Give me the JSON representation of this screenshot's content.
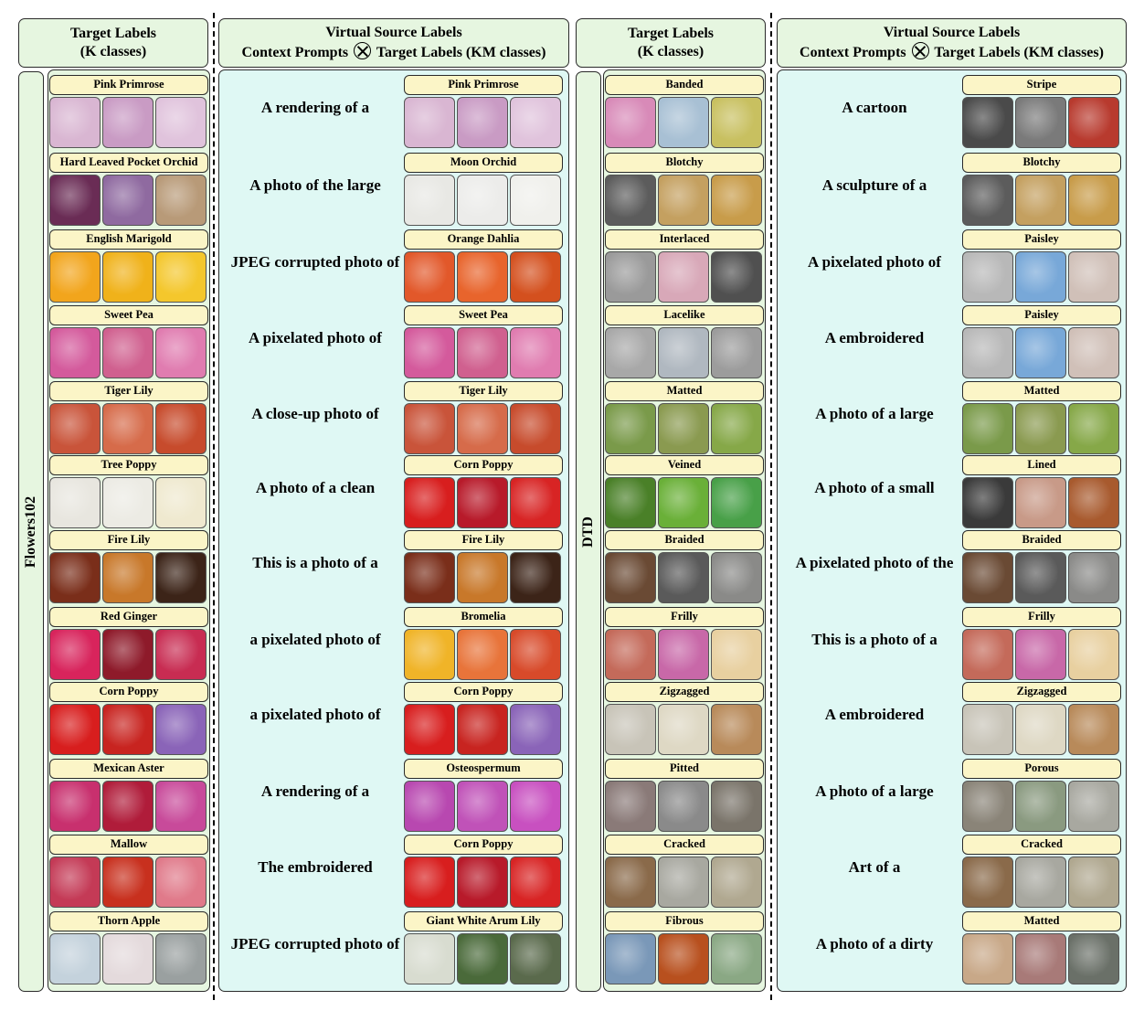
{
  "headers": {
    "target1": {
      "line1": "Target Labels",
      "line2": "(K classes)"
    },
    "virtual1": {
      "line1": "Virtual Source Labels",
      "part_a": "Context Prompts",
      "part_b": "Target Labels (KM classes)"
    },
    "target2": {
      "line1": "Target Labels",
      "line2": "(K classes)"
    },
    "virtual2": {
      "line1": "Virtual Source Labels",
      "part_a": "Context Prompts",
      "part_b": "Target Labels (KM classes)"
    }
  },
  "datasets": {
    "left": "Flowers102",
    "right": "DTD"
  },
  "flowers_targets": [
    {
      "label": "Pink Primrose",
      "colors": [
        "#d9b6d2",
        "#c99bc4",
        "#e0c3dc"
      ]
    },
    {
      "label": "Hard Leaved Pocket Orchid",
      "colors": [
        "#6a2c55",
        "#8f6aa0",
        "#b89a78"
      ]
    },
    {
      "label": "English Marigold",
      "colors": [
        "#f2a51c",
        "#f0b21a",
        "#f4c72c"
      ]
    },
    {
      "label": "Sweet Pea",
      "colors": [
        "#d45a9c",
        "#d0608f",
        "#e07cb0"
      ]
    },
    {
      "label": "Tiger Lily",
      "colors": [
        "#c9543a",
        "#d66b4a",
        "#c74b2c"
      ]
    },
    {
      "label": "Tree Poppy",
      "colors": [
        "#e8e6df",
        "#ecebe4",
        "#efe9cf"
      ]
    },
    {
      "label": "Fire Lily",
      "colors": [
        "#7a2e1a",
        "#c8782a",
        "#3c2418"
      ]
    },
    {
      "label": "Red Ginger",
      "colors": [
        "#d8245c",
        "#8e1a2a",
        "#c82c52"
      ]
    },
    {
      "label": "Corn Poppy",
      "colors": [
        "#d81e1e",
        "#c82420",
        "#8a64b8"
      ]
    },
    {
      "label": "Mexican Aster",
      "colors": [
        "#c8306e",
        "#b01c3a",
        "#c84a9a"
      ]
    },
    {
      "label": "Mallow",
      "colors": [
        "#c43a56",
        "#c8301e",
        "#e07a8a"
      ]
    },
    {
      "label": "Thorn Apple",
      "colors": [
        "#c4d2dc",
        "#e4dadc",
        "#9aa0a0"
      ]
    }
  ],
  "flowers_virtual": [
    {
      "prompt": "A rendering of a",
      "label": "Pink Primrose",
      "colors": [
        "#d9b6d2",
        "#c99bc4",
        "#e0c3dc"
      ]
    },
    {
      "prompt": "A photo of the large",
      "label": "Moon Orchid",
      "colors": [
        "#e8e8e4",
        "#ececea",
        "#f0f0ec"
      ]
    },
    {
      "prompt": "JPEG corrupted photo of",
      "label": "Orange Dahlia",
      "colors": [
        "#e2582a",
        "#e8642c",
        "#d4501e"
      ]
    },
    {
      "prompt": "A pixelated photo of",
      "label": "Sweet Pea",
      "colors": [
        "#d45a9c",
        "#d0608f",
        "#e07cb0"
      ]
    },
    {
      "prompt": "A close-up photo of",
      "label": "Tiger Lily",
      "colors": [
        "#c9543a",
        "#d66b4a",
        "#c74b2c"
      ]
    },
    {
      "prompt": "A photo of a clean",
      "label": "Corn Poppy",
      "colors": [
        "#d81e1e",
        "#b81a2a",
        "#d82424"
      ]
    },
    {
      "prompt": "This is a photo of a",
      "label": "Fire Lily",
      "colors": [
        "#7a2e1a",
        "#c8782a",
        "#3c2418"
      ]
    },
    {
      "prompt": "a pixelated photo of",
      "label": "Bromelia",
      "colors": [
        "#f0b428",
        "#e8743a",
        "#d84a2a"
      ]
    },
    {
      "prompt": "a pixelated photo of",
      "label": "Corn Poppy",
      "colors": [
        "#d81e1e",
        "#c82420",
        "#8a64b8"
      ]
    },
    {
      "prompt": "A rendering of a",
      "label": "Osteospermum",
      "colors": [
        "#b848b0",
        "#c052b8",
        "#c850c0"
      ]
    },
    {
      "prompt": "The embroidered",
      "label": "Corn Poppy",
      "colors": [
        "#d81e1e",
        "#b81a2a",
        "#d82424"
      ]
    },
    {
      "prompt": "JPEG corrupted photo of",
      "label": "Giant White Arum Lily",
      "colors": [
        "#d8dcd0",
        "#4a6a3a",
        "#5a6a4c"
      ]
    }
  ],
  "dtd_targets": [
    {
      "label": "Banded",
      "colors": [
        "#d88ab8",
        "#a8c0d4",
        "#c8c060"
      ]
    },
    {
      "label": "Blotchy",
      "colors": [
        "#5c5c5c",
        "#c4a060",
        "#c89c4a"
      ]
    },
    {
      "label": "Interlaced",
      "colors": [
        "#9a9a9a",
        "#d8a8b8",
        "#505050"
      ]
    },
    {
      "label": "Lacelike",
      "colors": [
        "#a8a8a8",
        "#b0b8c0",
        "#9c9c9c"
      ]
    },
    {
      "label": "Matted",
      "colors": [
        "#7a9a4a",
        "#8a9a50",
        "#86a848"
      ]
    },
    {
      "label": "Veined",
      "colors": [
        "#4a8028",
        "#6ab038",
        "#48a048"
      ]
    },
    {
      "label": "Braided",
      "colors": [
        "#6a4a34",
        "#5a5a5a",
        "#8a8a88"
      ]
    },
    {
      "label": "Frilly",
      "colors": [
        "#c46a5a",
        "#c868a8",
        "#e8d0a0"
      ]
    },
    {
      "label": "Zigzagged",
      "colors": [
        "#c8c4b8",
        "#ded8c4",
        "#b88a5a"
      ]
    },
    {
      "label": "Pitted",
      "colors": [
        "#8a7a78",
        "#8a8a8a",
        "#7a746a"
      ]
    },
    {
      "label": "Cracked",
      "colors": [
        "#8a6a4a",
        "#a8a8a0",
        "#b0a890"
      ]
    },
    {
      "label": "Fibrous",
      "colors": [
        "#7a98b8",
        "#b8501e",
        "#8aa884"
      ]
    }
  ],
  "dtd_virtual": [
    {
      "prompt": "A cartoon",
      "label": "Stripe",
      "colors": [
        "#4a4a4a",
        "#7a7a7a",
        "#b83a2e"
      ]
    },
    {
      "prompt": "A sculpture of a",
      "label": "Blotchy",
      "colors": [
        "#5c5c5c",
        "#c4a060",
        "#c89c4a"
      ]
    },
    {
      "prompt": "A pixelated photo of",
      "label": "Paisley",
      "colors": [
        "#b8b8b8",
        "#78a8d8",
        "#d0c0b8"
      ]
    },
    {
      "prompt": "A embroidered",
      "label": "Paisley",
      "colors": [
        "#b8b8b8",
        "#78a8d8",
        "#d0c0b8"
      ]
    },
    {
      "prompt": "A photo of a large",
      "label": "Matted",
      "colors": [
        "#7a9a4a",
        "#8a9a50",
        "#86a848"
      ]
    },
    {
      "prompt": "A photo of a small",
      "label": "Lined",
      "colors": [
        "#3a3a3a",
        "#c89a88",
        "#a85a2e"
      ]
    },
    {
      "prompt": "A pixelated photo of the",
      "label": "Braided",
      "colors": [
        "#6a4a34",
        "#5a5a5a",
        "#8a8a88"
      ]
    },
    {
      "prompt": "This is a photo of a",
      "label": "Frilly",
      "colors": [
        "#c46a5a",
        "#c868a8",
        "#e8d0a0"
      ]
    },
    {
      "prompt": "A embroidered",
      "label": "Zigzagged",
      "colors": [
        "#c8c4b8",
        "#ded8c4",
        "#b88a5a"
      ]
    },
    {
      "prompt": "A photo of a large",
      "label": "Porous",
      "colors": [
        "#8a8478",
        "#8a9a80",
        "#a8a8a0"
      ]
    },
    {
      "prompt": "Art of a",
      "label": "Cracked",
      "colors": [
        "#8a6a4a",
        "#a8a8a0",
        "#b0a890"
      ]
    },
    {
      "prompt": "A photo of a dirty",
      "label": "Matted",
      "colors": [
        "#c8a888",
        "#a87a78",
        "#6a7068"
      ]
    }
  ]
}
